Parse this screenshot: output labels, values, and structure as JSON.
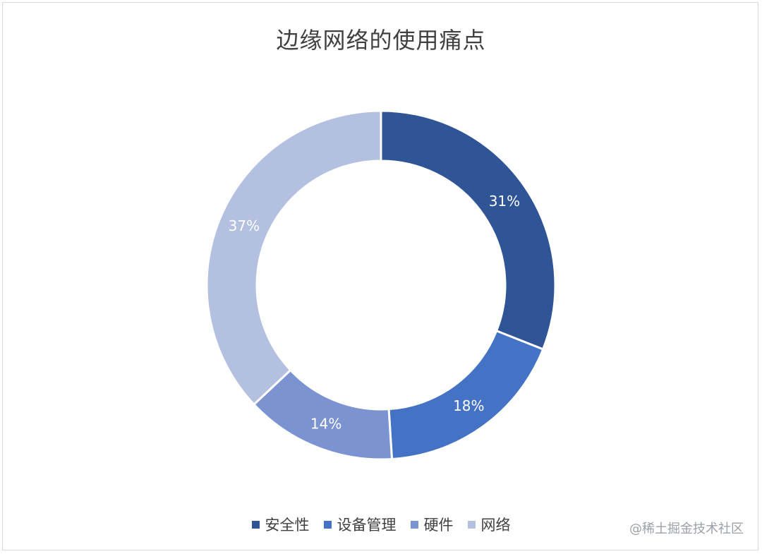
{
  "chart_data": {
    "type": "pie",
    "variant": "donut",
    "title": "边缘网络的使用痛点",
    "categories": [
      "安全性",
      "设备管理",
      "硬件",
      "网络"
    ],
    "values": [
      31,
      18,
      14,
      37
    ],
    "labels": [
      "31%",
      "18%",
      "14%",
      "37%"
    ],
    "colors": [
      "#2f5597",
      "#4472c4",
      "#7b93d0",
      "#b4c0e0"
    ],
    "legend_position": "bottom"
  },
  "watermark": "@稀土掘金技术社区"
}
